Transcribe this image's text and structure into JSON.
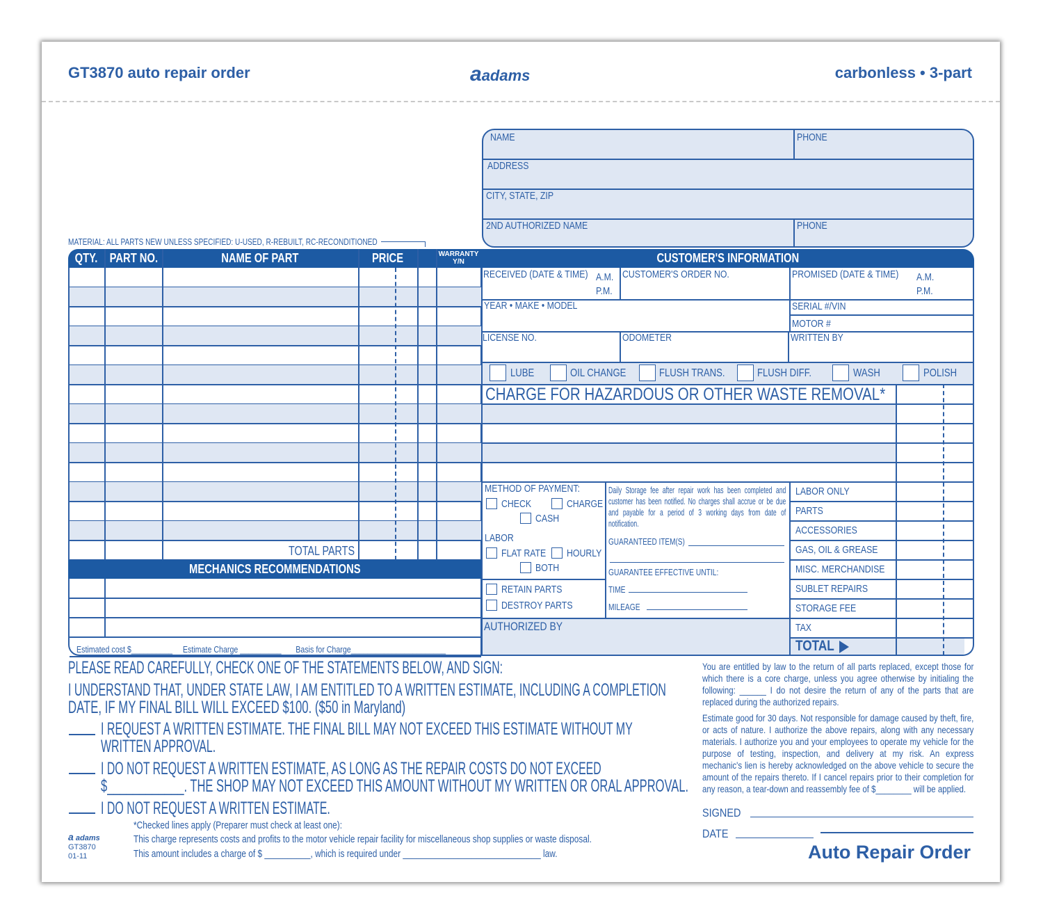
{
  "header": {
    "title": "GT3870 auto repair order",
    "brand": "adams",
    "right": "carbonless • 3-part"
  },
  "customer_box": {
    "name": "NAME",
    "phone": "PHONE",
    "address": "ADDRESS",
    "city": "CITY, STATE, ZIP",
    "second_name": "2ND AUTHORIZED NAME",
    "phone2": "PHONE"
  },
  "material_note": "MATERIAL: ALL PARTS NEW UNLESS SPECIFIED: U-USED, R-REBUILT, RC-RECONDITIONED",
  "parts_table": {
    "headers": [
      "QTY.",
      "PART NO.",
      "NAME OF PART",
      "PRICE",
      "",
      "WARRANTY Y/N"
    ],
    "total_label": "TOTAL PARTS"
  },
  "mechanics": {
    "title": "MECHANICS RECOMMENDATIONS",
    "estimated_cost": "Estimated cost $",
    "estimate_charge": "Estimate Charge",
    "basis": "Basis for Charge"
  },
  "info": {
    "title": "CUSTOMER'S INFORMATION",
    "received": "RECEIVED (DATE & TIME)",
    "am": "A.M.",
    "pm": "P.M.",
    "order_no": "CUSTOMER'S ORDER NO.",
    "promised": "PROMISED (DATE & TIME)",
    "ymm": "YEAR • MAKE • MODEL",
    "serial": "SERIAL #/VIN",
    "motor": "MOTOR #",
    "license": "LICENSE NO.",
    "odometer": "ODOMETER",
    "written_by": "WRITTEN BY",
    "services": [
      "LUBE",
      "OIL CHANGE",
      "FLUSH TRANS.",
      "FLUSH DIFF.",
      "WASH",
      "POLISH"
    ],
    "hazard": "CHARGE FOR HAZARDOUS OR OTHER WASTE REMOVAL*"
  },
  "payment": {
    "title": "METHOD OF PAYMENT:",
    "check": "CHECK",
    "charge": "CHARGE",
    "cash": "CASH",
    "labor": "LABOR",
    "flat": "FLAT RATE",
    "hourly": "HOURLY",
    "both": "BOTH",
    "retain": "RETAIN PARTS",
    "destroy": "DESTROY PARTS",
    "authorized": "AUTHORIZED BY"
  },
  "storage": {
    "text": "Daily Storage fee after repair work has been completed and customer has been notified. No charges shall accrue or be due and payable for a period of 3 working days from date of notification.",
    "guaranteed": "GUARANTEED ITEM(S)",
    "effective": "GUARANTEE EFFECTIVE UNTIL:",
    "time": "TIME",
    "mileage": "MILEAGE"
  },
  "totals": [
    "LABOR ONLY",
    "PARTS",
    "ACCESSORIES",
    "GAS, OIL & GREASE",
    "MISC. MERCHANDISE",
    "SUBLET REPAIRS",
    "STORAGE FEE",
    "TAX"
  ],
  "total": "TOTAL",
  "statements": {
    "intro": "PLEASE READ CAREFULLY, CHECK ONE OF THE STATEMENTS BELOW, AND SIGN:",
    "law1": "I UNDERSTAND THAT, UNDER STATE LAW, I AM ENTITLED TO A WRITTEN ESTIMATE, INCLUDING A COMPLETION",
    "law2": "DATE, IF MY FINAL BILL WILL EXCEED $100. ($50 in Maryland)",
    "opt1a": "I REQUEST A WRITTEN ESTIMATE.  THE FINAL BILL MAY NOT EXCEED THIS ESTIMATE WITHOUT MY",
    "opt1b": "WRITTEN APPROVAL.",
    "opt2a": "I DO NOT REQUEST A WRITTEN ESTIMATE, AS LONG AS THE REPAIR COSTS DO NOT EXCEED",
    "opt2b": "$____________.  THE SHOP MAY NOT EXCEED THIS AMOUNT WITHOUT MY WRITTEN OR ORAL APPROVAL.",
    "opt3": "I DO NOT REQUEST A WRITTEN ESTIMATE.",
    "checked": "*Checked lines apply (Preparer must check at least one):",
    "line1": "This charge represents costs and profits to the motor vehicle repair facility for miscellaneous shop supplies or waste disposal.",
    "line2": "This amount includes a charge of $ __________, which is required under ______________________________ law."
  },
  "footer_logo": {
    "brand": "adams",
    "code": "GT3870",
    "rev": "01-11"
  },
  "legal": {
    "p1": "You are entitled by law to the return of all parts replaced, except those for which there is a core charge, unless you agree otherwise by initialing the following: ______ I do not desire the return of any of the parts that are replaced during the authorized repairs.",
    "p2": "Estimate good for 30 days. Not responsible for damage caused by theft, fire, or acts of nature. I authorize the above repairs, along with any necessary materials. I authorize you and your employees to operate my vehicle for the purpose of testing, inspection, and delivery at my risk. An express mechanic's lien is hereby acknowledged on the above vehicle to secure the amount of the repairs thereto. If I cancel repairs prior to their completion for any reason, a tear-down and reassembly fee of $________ will be applied.",
    "signed": "SIGNED",
    "date": "DATE"
  },
  "form_title": "Auto Repair Order",
  "colors": {
    "ink": "#2d5fa6",
    "header_fill": "#1c5aa3",
    "shade": "#dfe7f3"
  }
}
